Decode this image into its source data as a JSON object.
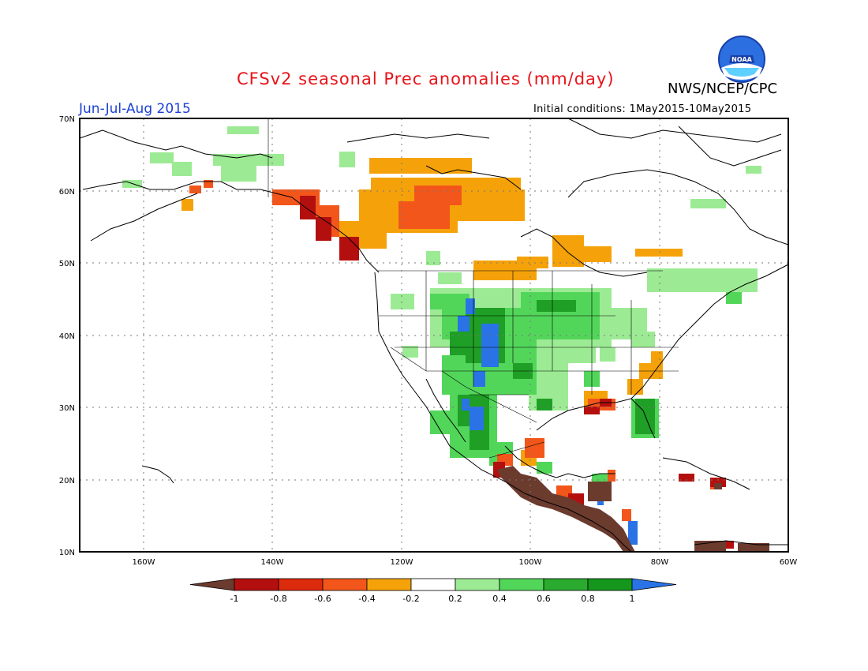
{
  "header": {
    "title": "CFSv2 seasonal Prec anomalies (mm/day)",
    "season": "Jun-Jul-Aug 2015",
    "initial_conditions": "Initial conditions: 1May2015-10May2015",
    "agency": "NWS/NCEP/CPC",
    "logo_text": "NOAA"
  },
  "axes": {
    "lat_labels": [
      "70N",
      "60N",
      "50N",
      "40N",
      "30N",
      "20N",
      "10N"
    ],
    "lon_labels": [
      "160W",
      "140W",
      "120W",
      "100W",
      "80W",
      "60W"
    ]
  },
  "colorbar": {
    "labels": [
      "-1",
      "-0.8",
      "-0.6",
      "-0.4",
      "-0.2",
      "0.2",
      "0.4",
      "0.6",
      "0.8",
      "1"
    ],
    "colors": [
      "#6b3b2e",
      "#b40f0f",
      "#dc2a0c",
      "#f2561a",
      "#f5a20a",
      "#ffffff",
      "#9ceb94",
      "#52d65a",
      "#2aaa2e",
      "#15961c",
      "#2a73e6"
    ]
  },
  "colors": {
    "light_green": "#9ceb94",
    "green": "#52d65a",
    "dark_green": "#1f9f25",
    "blue": "#2a73e6",
    "orange": "#f5a20a",
    "red_orange": "#f2561a",
    "red": "#b40f0f",
    "brown": "#6b3b2e"
  }
}
